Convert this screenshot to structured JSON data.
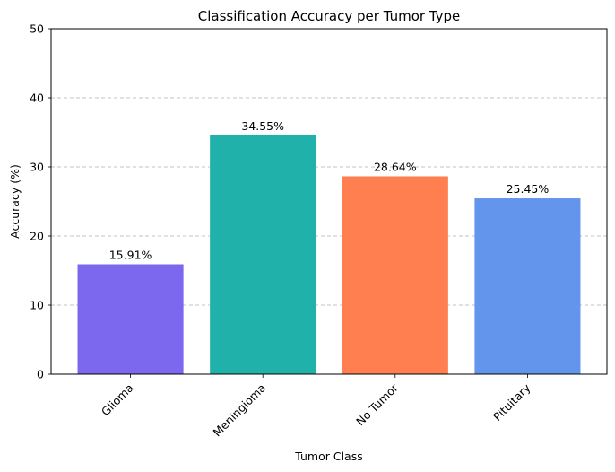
{
  "chart_data": {
    "type": "bar",
    "title": "Classification Accuracy per Tumor Type",
    "xlabel": "Tumor Class",
    "ylabel": "Accuracy (%)",
    "categories": [
      "Glioma",
      "Meningioma",
      "No Tumor",
      "Pituitary"
    ],
    "values": [
      15.91,
      34.55,
      28.64,
      25.45
    ],
    "value_labels": [
      "15.91%",
      "34.55%",
      "28.64%",
      "25.45%"
    ],
    "colors": [
      "#7b68ee",
      "#20b2aa",
      "#ff7f50",
      "#6495ed"
    ],
    "ylim": [
      0,
      50
    ],
    "yticks": [
      0,
      10,
      20,
      30,
      40,
      50
    ],
    "ytick_labels": [
      "0",
      "10",
      "20",
      "30",
      "40",
      "50"
    ],
    "grid": "y-dashed",
    "xtick_rotation": 45,
    "legend": "none"
  }
}
